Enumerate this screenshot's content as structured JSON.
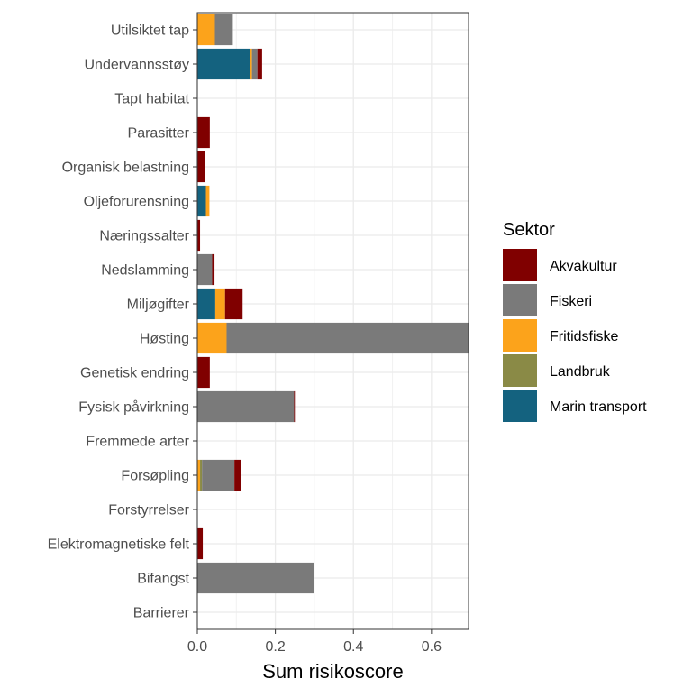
{
  "chart_data": {
    "type": "bar",
    "orientation": "horizontal",
    "stacked": true,
    "xlabel": "Sum risikoscore",
    "ylabel": "",
    "xlim": [
      0,
      0.695
    ],
    "xticks": [
      0.0,
      0.2,
      0.4,
      0.6
    ],
    "xtick_labels": [
      "0.0",
      "0.2",
      "0.4",
      "0.6"
    ],
    "grid": true,
    "legend_position": "right",
    "categories": [
      "Utilsiktet tap",
      "Undervannsstøy",
      "Tapt habitat",
      "Parasitter",
      "Organisk belastning",
      "Oljeforurensning",
      "Næringssalter",
      "Nedslamming",
      "Miljøgifter",
      "Høsting",
      "Genetisk endring",
      "Fysisk påvirkning",
      "Fremmede arter",
      "Forsøpling",
      "Forstyrrelser",
      "Elektromagnetiske felt",
      "Bifangst",
      "Barrierer"
    ],
    "stack_order": [
      "Marin transport",
      "Fritidsfiske",
      "Landbruk",
      "Fiskeri",
      "Akvakultur"
    ],
    "legend_title": "Sektor",
    "series": [
      {
        "name": "Akvakultur",
        "color": "#800000",
        "values": [
          0,
          0.012,
          0,
          0.032,
          0.02,
          0,
          0.007,
          0.006,
          0.045,
          0,
          0.032,
          0.002,
          0,
          0.016,
          0,
          0.014,
          0,
          0
        ]
      },
      {
        "name": "Fiskeri",
        "color": "#7a7a7a",
        "values": [
          0.046,
          0.014,
          0,
          0,
          0,
          0,
          0,
          0.038,
          0,
          0.62,
          0,
          0.248,
          0,
          0.083,
          0,
          0,
          0.3,
          0
        ]
      },
      {
        "name": "Fritidsfiske",
        "color": "#fca31b",
        "values": [
          0.045,
          0.005,
          0,
          0,
          0,
          0.009,
          0,
          0,
          0.025,
          0.075,
          0,
          0,
          0,
          0.007,
          0,
          0,
          0,
          0
        ]
      },
      {
        "name": "Landbruk",
        "color": "#8a8a46",
        "values": [
          0,
          0,
          0,
          0,
          0,
          0,
          0,
          0,
          0,
          0,
          0,
          0,
          0,
          0.005,
          0,
          0,
          0,
          0
        ]
      },
      {
        "name": "Marin transport",
        "color": "#14627f",
        "values": [
          0,
          0.135,
          0,
          0,
          0,
          0.022,
          0,
          0,
          0.046,
          0,
          0,
          0,
          0,
          0,
          0,
          0,
          0,
          0
        ]
      }
    ]
  }
}
